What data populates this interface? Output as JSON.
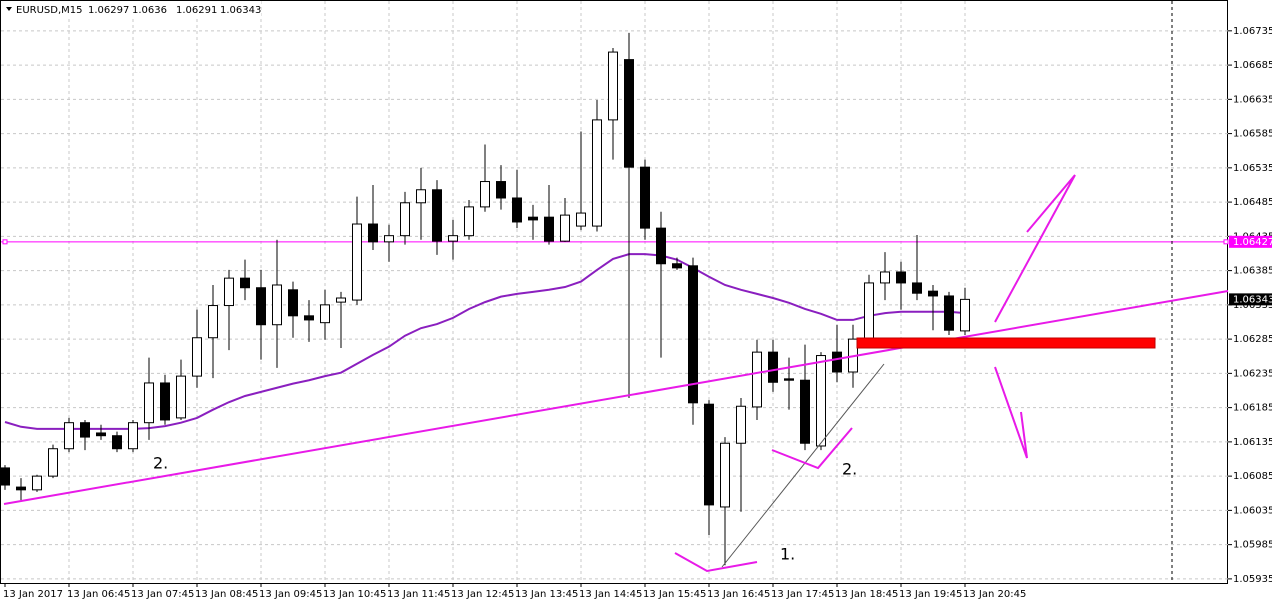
{
  "chart_data": {
    "type": "candlestick",
    "title": "EURUSD,M15",
    "categories": [
      "13 Jan 2017",
      null,
      null,
      null,
      "13 Jan 06:45",
      null,
      null,
      null,
      "13 Jan 07:45",
      null,
      null,
      null,
      "13 Jan 08:45",
      null,
      null,
      null,
      "13 Jan 09:45",
      null,
      null,
      null,
      "13 Jan 10:45",
      null,
      null,
      null,
      "13 Jan 11:45",
      null,
      null,
      null,
      "13 Jan 12:45",
      null,
      null,
      null,
      "13 Jan 13:45",
      null,
      null,
      null,
      "13 Jan 14:45",
      null,
      null,
      null,
      "13 Jan 15:45",
      null,
      null,
      null,
      "13 Jan 16:45",
      null,
      null,
      null,
      "13 Jan 17:45",
      null,
      null,
      null,
      "13 Jan 18:45",
      null,
      null,
      null,
      "13 Jan 19:45",
      null,
      null,
      null,
      "13 Jan 20:45"
    ],
    "open": [
      1.06097,
      1.06069,
      1.06065,
      1.06085,
      1.06125,
      1.06163,
      1.06148,
      1.06144,
      1.06125,
      1.06163,
      1.06221,
      1.0617,
      1.06231,
      1.06287,
      1.06334,
      1.06374,
      1.0636,
      1.06306,
      1.06357,
      1.06319,
      1.06309,
      1.06339,
      1.06342,
      1.06453,
      1.06427,
      1.06436,
      1.06484,
      1.06503,
      1.06428,
      1.06436,
      1.06478,
      1.06515,
      1.06491,
      1.06463,
      1.06463,
      1.06428,
      1.0645,
      1.0645,
      1.06605,
      1.06693,
      1.06536,
      1.06447,
      1.06395,
      1.06392,
      1.0619,
      1.0604,
      1.06133,
      1.06186,
      1.06266,
      1.06227,
      1.06225,
      1.06129,
      1.06266,
      1.06237,
      1.06285,
      1.06367,
      1.06383,
      1.06367,
      1.06355,
      1.06348,
      1.06297
    ],
    "high": [
      1.06101,
      1.06082,
      1.06087,
      1.06131,
      1.0617,
      1.06167,
      1.0616,
      1.0615,
      1.06167,
      1.06258,
      1.06233,
      1.06255,
      1.06328,
      1.06364,
      1.06386,
      1.06401,
      1.06386,
      1.0643,
      1.06369,
      1.06342,
      1.06357,
      1.06354,
      1.06493,
      1.0651,
      1.06452,
      1.065,
      1.06535,
      1.06517,
      1.06459,
      1.06488,
      1.06569,
      1.06539,
      1.06532,
      1.06481,
      1.0651,
      1.06491,
      1.06588,
      1.06634,
      1.0671,
      1.06732,
      1.06547,
      1.06471,
      1.06404,
      1.06404,
      1.06196,
      1.06142,
      1.06199,
      1.06284,
      1.06284,
      1.06258,
      1.06277,
      1.06266,
      1.06306,
      1.06306,
      1.06379,
      1.06412,
      1.06398,
      1.06437,
      1.06364,
      1.06354,
      1.0636
    ],
    "low": [
      1.06065,
      1.0605,
      1.06062,
      1.06082,
      1.0612,
      1.06123,
      1.06138,
      1.0612,
      1.0612,
      1.06138,
      1.0616,
      1.06167,
      1.06214,
      1.06228,
      1.06269,
      1.06342,
      1.06255,
      1.06243,
      1.06287,
      1.06281,
      1.06284,
      1.06272,
      1.06335,
      1.06415,
      1.06398,
      1.06423,
      1.0643,
      1.06408,
      1.06401,
      1.0643,
      1.06471,
      1.06474,
      1.06447,
      1.0643,
      1.06423,
      1.06427,
      1.06444,
      1.06442,
      1.06547,
      1.06199,
      1.0643,
      1.06258,
      1.06386,
      1.0616,
      1.05999,
      1.05955,
      1.06033,
      1.06167,
      1.06208,
      1.06182,
      1.06123,
      1.06123,
      1.06222,
      1.06214,
      1.06284,
      1.06342,
      1.06328,
      1.06342,
      1.06298,
      1.06291,
      1.06291
    ],
    "close": [
      1.06072,
      1.06065,
      1.06085,
      1.06125,
      1.06163,
      1.06142,
      1.06144,
      1.06125,
      1.06163,
      1.06221,
      1.06167,
      1.06231,
      1.06287,
      1.06334,
      1.06374,
      1.0636,
      1.06306,
      1.06364,
      1.06319,
      1.06313,
      1.06335,
      1.06345,
      1.06453,
      1.06427,
      1.06436,
      1.06484,
      1.06503,
      1.06428,
      1.06436,
      1.06478,
      1.06515,
      1.06491,
      1.06456,
      1.06459,
      1.06428,
      1.06466,
      1.06469,
      1.06605,
      1.06704,
      1.06536,
      1.06447,
      1.06395,
      1.06389,
      1.06192,
      1.06043,
      1.06133,
      1.06187,
      1.06266,
      1.06222,
      1.06225,
      1.06133,
      1.06261,
      1.06237,
      1.06285,
      1.06367,
      1.06383,
      1.06367,
      1.06352,
      1.06348,
      1.06298,
      1.06343
    ],
    "moving_average": {
      "color": "#8a1fbf",
      "values": [
        1.06164,
        1.06157,
        1.06154,
        1.06154,
        1.06154,
        1.06154,
        1.06154,
        1.06154,
        1.06154,
        1.06155,
        1.06158,
        1.06163,
        1.0617,
        1.06182,
        1.06193,
        1.06202,
        1.06208,
        1.06214,
        1.0622,
        1.06225,
        1.06231,
        1.06236,
        1.06249,
        1.06262,
        1.06274,
        1.0629,
        1.06301,
        1.06307,
        1.06316,
        1.06329,
        1.06339,
        1.06347,
        1.06351,
        1.06354,
        1.06357,
        1.06361,
        1.06369,
        1.06386,
        1.06402,
        1.06409,
        1.06409,
        1.06407,
        1.06401,
        1.06389,
        1.06376,
        1.06364,
        1.06357,
        1.06351,
        1.06345,
        1.06338,
        1.06329,
        1.06322,
        1.06313,
        1.06313,
        1.06319,
        1.06323,
        1.06325,
        1.06325,
        1.06325,
        1.06325,
        1.06323
      ]
    },
    "hlines": [
      {
        "value": 1.06427,
        "color": "#ff00ff"
      }
    ],
    "bull_color": "#ffffff",
    "bear_color": "#000000",
    "ylim": [
      1.05929,
      1.0678
    ],
    "yticks": [
      1.05935,
      1.05985,
      1.06035,
      1.06085,
      1.06135,
      1.06185,
      1.06235,
      1.06285,
      1.06335,
      1.06385,
      1.06435,
      1.06485,
      1.06535,
      1.06585,
      1.06635,
      1.06685,
      1.06735
    ],
    "grid": true,
    "annotations": [
      {
        "text": "2.",
        "color": "#ff0000"
      },
      {
        "text": "2.",
        "color": "#ff0000"
      },
      {
        "text": "1.",
        "color": "#ff0000"
      }
    ]
  }
}
